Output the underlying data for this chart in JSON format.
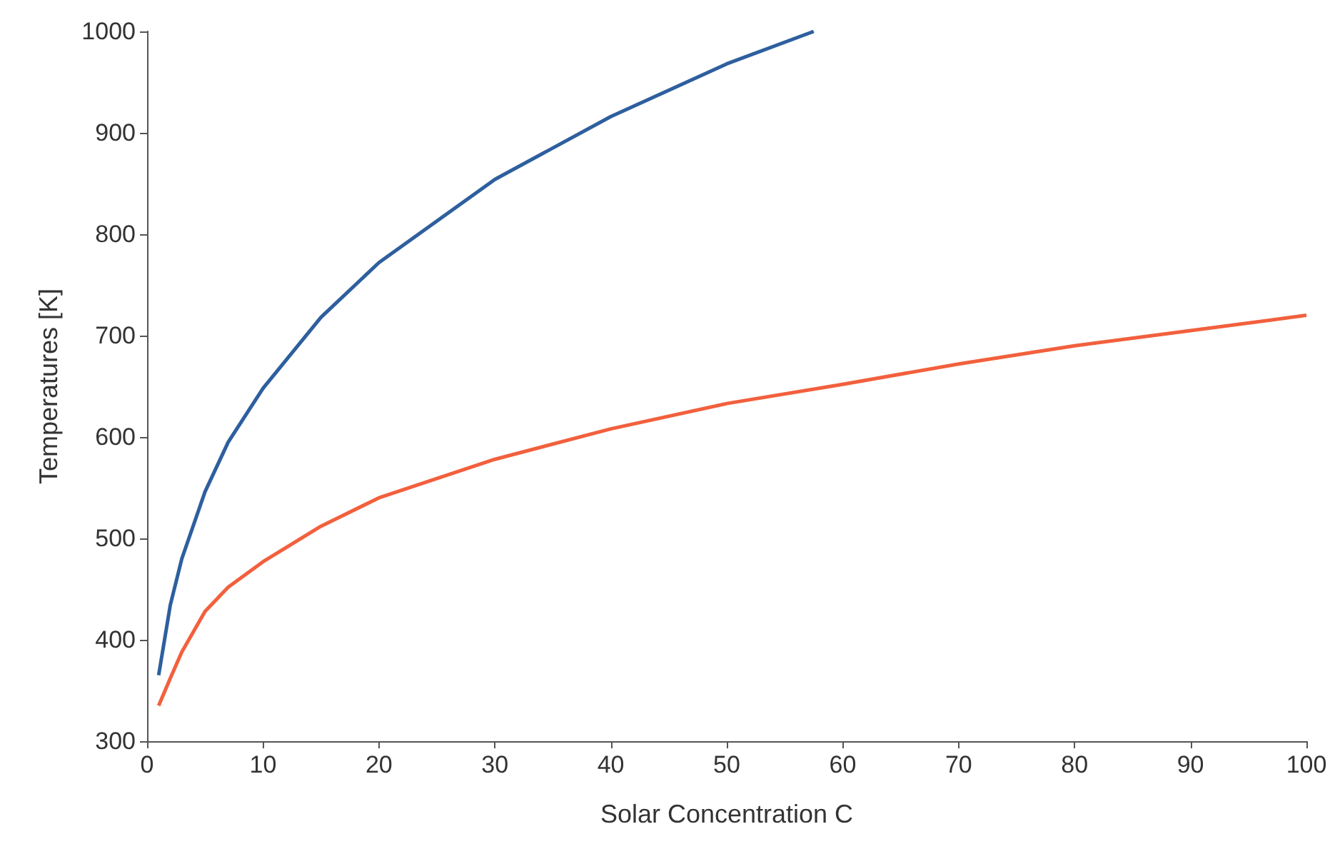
{
  "chart_data": {
    "type": "line",
    "xlabel": "Solar Concentration C",
    "ylabel": "Temperatures [K]",
    "xlim": [
      0,
      100
    ],
    "xticks": [
      0,
      10,
      20,
      30,
      40,
      50,
      60,
      70,
      80,
      90,
      100
    ],
    "ylim": [
      300,
      1000
    ],
    "yticks": [
      300,
      400,
      500,
      600,
      700,
      800,
      900,
      1000
    ],
    "grid": false,
    "marker": "none",
    "line_style": "solid",
    "series": [
      {
        "color": "#2e5f9e",
        "x": [
          1,
          2,
          3,
          5,
          7,
          10,
          15,
          20,
          30,
          40,
          50,
          57.5
        ],
        "values": [
          365,
          434,
          480,
          546,
          595,
          648,
          718,
          772,
          854,
          916,
          968,
          1000
        ]
      },
      {
        "color": "#f2603d",
        "x": [
          1,
          2,
          3,
          5,
          7,
          10,
          15,
          20,
          30,
          40,
          50,
          60,
          70,
          80,
          90,
          100
        ],
        "values": [
          335,
          362,
          388,
          428,
          452,
          477,
          512,
          540,
          578,
          608,
          633,
          652,
          672,
          690,
          705,
          720
        ]
      }
    ]
  }
}
